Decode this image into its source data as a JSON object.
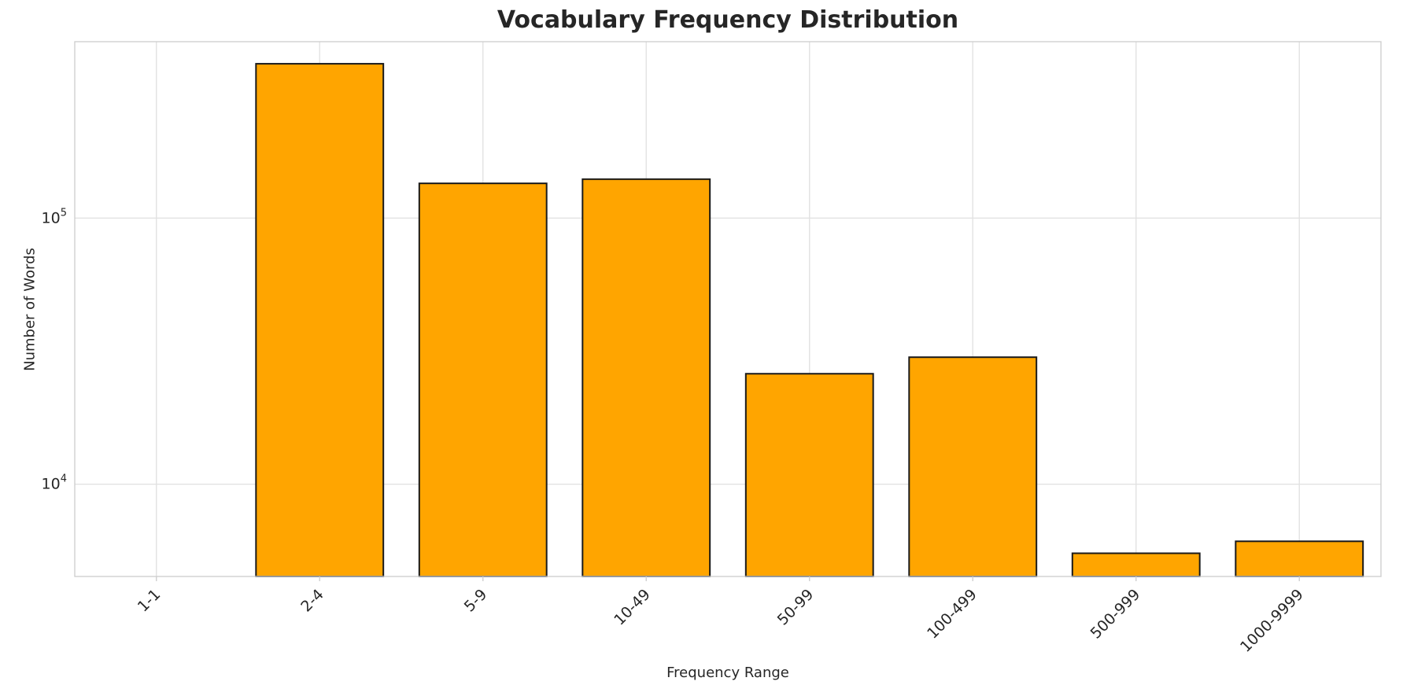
{
  "chart_data": {
    "type": "bar",
    "title": "Vocabulary Frequency Distribution",
    "xlabel": "Frequency Range",
    "ylabel": "Number of Words",
    "categories": [
      "1-1",
      "2-4",
      "5-9",
      "10-49",
      "50-99",
      "100-499",
      "500-999",
      "1000-9999"
    ],
    "values": [
      0,
      380000,
      135000,
      140000,
      26000,
      30000,
      5500,
      6100
    ],
    "yscale": "log",
    "ylim": [
      4500,
      460000
    ],
    "yticks": [
      10000,
      100000
    ],
    "ytick_labels": [
      "10^4",
      "10^5"
    ],
    "grid": true,
    "legend": "none",
    "colors": {
      "bar_fill": "#FFA500",
      "bar_edge": "#1a1a1a",
      "grid_line": "#e2e2e2",
      "spine": "#cfcfcf",
      "text": "#262626"
    }
  }
}
